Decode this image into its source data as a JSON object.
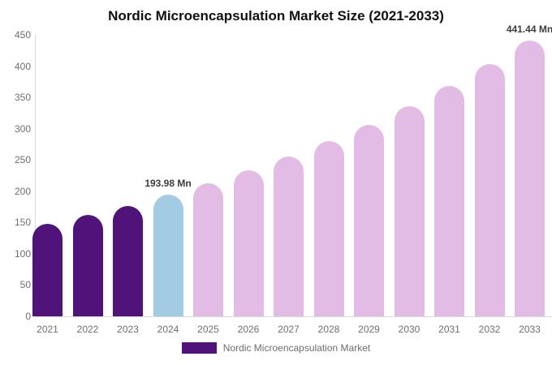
{
  "chart_data": {
    "type": "bar",
    "title": "Nordic Microencapsulation Market Size (2021-2033)",
    "unit": "Mn",
    "categories": [
      "2021",
      "2022",
      "2023",
      "2024",
      "2025",
      "2026",
      "2027",
      "2028",
      "2029",
      "2030",
      "2031",
      "2032",
      "2033"
    ],
    "values": [
      147.5,
      161.6,
      177.0,
      193.98,
      212.5,
      232.9,
      255.2,
      279.6,
      306.4,
      335.7,
      367.9,
      403.1,
      441.44
    ],
    "bar_colors": [
      "#4F1379",
      "#4F1379",
      "#4F1379",
      "#A3CBE3",
      "#E3BCE6",
      "#E3BCE6",
      "#E3BCE6",
      "#E3BCE6",
      "#E3BCE6",
      "#E3BCE6",
      "#E3BCE6",
      "#E3BCE6",
      "#E3BCE6"
    ],
    "colors": {
      "historical": "#4F1379",
      "current": "#A3CBE3",
      "forecast": "#E3BCE6"
    },
    "annotations": [
      {
        "category": "2024",
        "text": "193.98 Mn"
      },
      {
        "category": "2033",
        "text": "441.44 Mn"
      }
    ],
    "xlabel": "",
    "ylabel": "",
    "ylim": [
      0,
      450
    ],
    "y_ticks": [
      0,
      50,
      100,
      150,
      200,
      250,
      300,
      350,
      400,
      450
    ],
    "grid": "none",
    "legend_position": "bottom"
  },
  "legend": {
    "label": "Nordic Microencapsulation Market",
    "swatch_color": "#4F1379"
  }
}
